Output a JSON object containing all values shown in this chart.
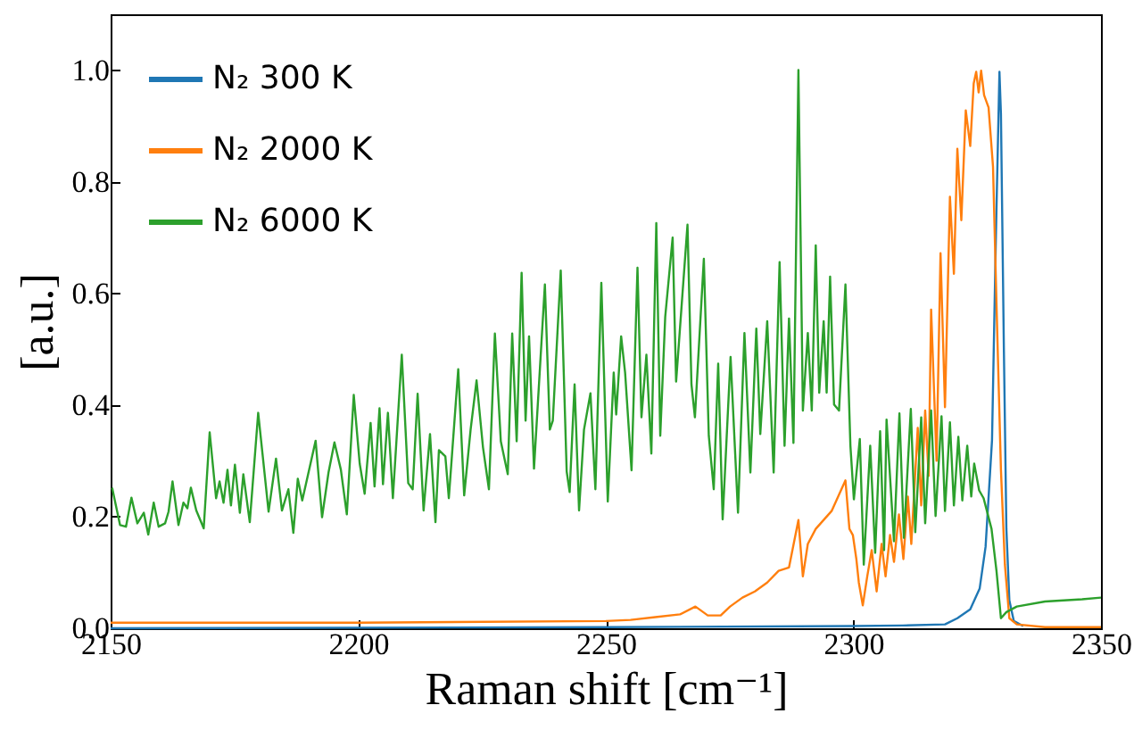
{
  "chart_data": {
    "type": "line",
    "xlabel": "Raman shift [cm⁻¹]",
    "ylabel": "[a.u.]",
    "xlim": [
      2150,
      2350
    ],
    "xticks": [
      2150,
      2200,
      2250,
      2300,
      2350
    ],
    "ylim": [
      0,
      1.1
    ],
    "yticks": [
      {
        "value": 0,
        "label": "0.0"
      },
      0.2,
      0.4,
      0.6,
      0.8,
      {
        "value": 1,
        "label": "1.0"
      }
    ],
    "grid": false,
    "legend": "top left",
    "marker": "none",
    "line_style": "solid",
    "series": [
      {
        "name": "N₂ 300 K",
        "color": "#1f77b4",
        "x": [
          2150,
          2250,
          2300,
          2310,
          2318.5,
          2321,
          2323.6,
          2325.5,
          2326.7,
          2328,
          2328.8,
          2329.5,
          2329.8,
          2330.4,
          2330.9,
          2331.5,
          2332.4,
          2334.3
        ],
        "values": [
          0,
          0.002,
          0.004,
          0.005,
          0.007,
          0.018,
          0.034,
          0.071,
          0.146,
          0.337,
          0.71,
          0.997,
          0.922,
          0.497,
          0.178,
          0.05,
          0.013,
          0.004
        ]
      },
      {
        "name": "N₂ 2000 K",
        "color": "#ff7f0e",
        "x": [
          2150,
          2200,
          2250,
          2255,
          2260,
          2265,
          2268.1,
          2270.6,
          2273.2,
          2275.1,
          2277.6,
          2280.1,
          2282.6,
          2284.9,
          2287,
          2288.9,
          2289.8,
          2290.8,
          2292.4,
          2294,
          2295.6,
          2298.4,
          2299.2,
          2299.9,
          2300.6,
          2301.1,
          2301.9,
          2302.8,
          2303.7,
          2304.7,
          2305.7,
          2306.5,
          2307.4,
          2308.2,
          2309.2,
          2310.1,
          2311,
          2311.7,
          2313,
          2313.7,
          2314.5,
          2315.2,
          2315.7,
          2316.8,
          2317.6,
          2318.5,
          2319.5,
          2320.3,
          2321,
          2321.8,
          2322.7,
          2323.6,
          2324.3,
          2324.8,
          2325.3,
          2325.8,
          2326.4,
          2327.3,
          2328.2,
          2328.9,
          2329.8,
          2330.6,
          2331.5,
          2333,
          2338.7,
          2350
        ],
        "values": [
          0.01,
          0.01,
          0.013,
          0.015,
          0.02,
          0.025,
          0.039,
          0.023,
          0.023,
          0.039,
          0.055,
          0.066,
          0.082,
          0.103,
          0.109,
          0.194,
          0.093,
          0.151,
          0.178,
          0.194,
          0.21,
          0.265,
          0.178,
          0.167,
          0.124,
          0.082,
          0.041,
          0.093,
          0.14,
          0.066,
          0.151,
          0.093,
          0.167,
          0.119,
          0.204,
          0.124,
          0.236,
          0.151,
          0.359,
          0.22,
          0.39,
          0.273,
          0.571,
          0.3,
          0.672,
          0.396,
          0.773,
          0.635,
          0.859,
          0.731,
          0.928,
          0.864,
          0.976,
          0.997,
          0.96,
          0.999,
          0.955,
          0.933,
          0.827,
          0.582,
          0.284,
          0.114,
          0.018,
          0.007,
          0.002,
          0.002
        ]
      },
      {
        "name": "N₂ 6000 K",
        "color": "#2ca02c",
        "x": [
          2150.3,
          2151.9,
          2153.1,
          2154.2,
          2155.4,
          2156.7,
          2157.6,
          2158.7,
          2159.7,
          2161,
          2161.7,
          2162.5,
          2163.7,
          2164.7,
          2165.5,
          2166.2,
          2167.3,
          2168.8,
          2170,
          2171.3,
          2172,
          2172.8,
          2173.6,
          2174.3,
          2175.1,
          2176.1,
          2176.8,
          2178.1,
          2179.8,
          2181.9,
          2183.4,
          2184.6,
          2185.9,
          2186.9,
          2187.8,
          2188.7,
          2191.4,
          2192.7,
          2194,
          2195.2,
          2196.5,
          2197.7,
          2199.1,
          2200.3,
          2201.3,
          2202.5,
          2203.3,
          2204.3,
          2205,
          2206,
          2207,
          2208.8,
          2210.1,
          2211,
          2212,
          2213.2,
          2214.5,
          2215.6,
          2216.3,
          2217.6,
          2218.3,
          2220.2,
          2221.4,
          2222.7,
          2223.9,
          2225.2,
          2226.4,
          2227.6,
          2228.8,
          2230.2,
          2231.1,
          2232,
          2233,
          2233.8,
          2234.5,
          2235.5,
          2237.7,
          2238.7,
          2239.3,
          2240.9,
          2242.1,
          2242.7,
          2243.7,
          2244.6,
          2245.6,
          2246.9,
          2247.9,
          2249.1,
          2250.4,
          2251.6,
          2252.1,
          2253.1,
          2253.9,
          2255.2,
          2256.4,
          2257.2,
          2258.2,
          2259.2,
          2260.2,
          2261,
          2262,
          2263.5,
          2264.2,
          2266.5,
          2267.3,
          2268,
          2269.8,
          2270.8,
          2271.8,
          2272.7,
          2273.6,
          2275.2,
          2276.7,
          2278,
          2279.2,
          2280.4,
          2281.2,
          2282.6,
          2283.9,
          2285.1,
          2286.1,
          2287,
          2287.9,
          2288.9,
          2289.8,
          2290.8,
          2291.6,
          2292.4,
          2293.1,
          2294,
          2294.6,
          2295.3,
          2296.1,
          2297.1,
          2298.4,
          2299.4,
          2300.1,
          2301.3,
          2302.1,
          2303.4,
          2304.4,
          2305.4,
          2306.2,
          2306.7,
          2308.2,
          2309.3,
          2310.2,
          2311.6,
          2312.5,
          2313.7,
          2314.5,
          2315.7,
          2316.6,
          2317.8,
          2318.5,
          2319.5,
          2320.3,
          2321.2,
          2322,
          2323,
          2323.8,
          2324.4,
          2325.4,
          2326.3,
          2327.9,
          2328.9,
          2329.8,
          2330.9,
          2333,
          2338.7,
          2346.2,
          2350
        ],
        "values": [
          0.252,
          0.185,
          0.182,
          0.234,
          0.188,
          0.207,
          0.168,
          0.225,
          0.182,
          0.188,
          0.209,
          0.263,
          0.185,
          0.225,
          0.215,
          0.252,
          0.211,
          0.179,
          0.351,
          0.233,
          0.263,
          0.225,
          0.284,
          0.22,
          0.293,
          0.207,
          0.276,
          0.19,
          0.386,
          0.209,
          0.304,
          0.211,
          0.249,
          0.171,
          0.268,
          0.229,
          0.336,
          0.199,
          0.279,
          0.333,
          0.284,
          0.204,
          0.418,
          0.295,
          0.241,
          0.368,
          0.254,
          0.394,
          0.258,
          0.386,
          0.233,
          0.49,
          0.26,
          0.249,
          0.42,
          0.211,
          0.348,
          0.19,
          0.319,
          0.308,
          0.233,
          0.464,
          0.238,
          0.356,
          0.444,
          0.324,
          0.249,
          0.528,
          0.335,
          0.276,
          0.528,
          0.335,
          0.637,
          0.372,
          0.523,
          0.286,
          0.616,
          0.356,
          0.372,
          0.641,
          0.281,
          0.244,
          0.437,
          0.211,
          0.356,
          0.421,
          0.249,
          0.619,
          0.227,
          0.458,
          0.383,
          0.523,
          0.458,
          0.283,
          0.646,
          0.378,
          0.49,
          0.313,
          0.726,
          0.345,
          0.558,
          0.7,
          0.442,
          0.723,
          0.437,
          0.378,
          0.662,
          0.345,
          0.249,
          0.474,
          0.195,
          0.486,
          0.207,
          0.529,
          0.279,
          0.537,
          0.348,
          0.55,
          0.279,
          0.656,
          0.327,
          0.555,
          0.332,
          1.0,
          0.39,
          0.529,
          0.39,
          0.686,
          0.422,
          0.55,
          0.422,
          0.63,
          0.401,
          0.39,
          0.616,
          0.327,
          0.231,
          0.339,
          0.114,
          0.327,
          0.135,
          0.353,
          0.14,
          0.374,
          0.156,
          0.385,
          0.162,
          0.393,
          0.172,
          0.378,
          0.188,
          0.39,
          0.201,
          0.38,
          0.21,
          0.369,
          0.22,
          0.343,
          0.229,
          0.327,
          0.236,
          0.295,
          0.247,
          0.233,
          0.178,
          0.103,
          0.018,
          0.029,
          0.039,
          0.048,
          0.052,
          0.055
        ]
      }
    ]
  }
}
